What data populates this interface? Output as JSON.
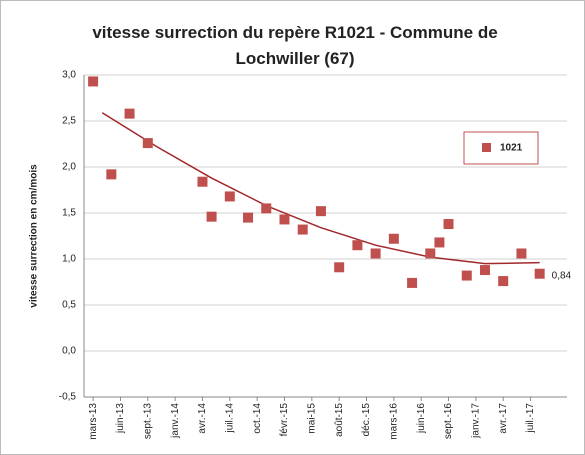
{
  "chart_data": {
    "type": "scatter",
    "title": "vitesse surrection du repère R1021 - Commune de Lochwiller (67)",
    "y_label": "vitesse surrection en cm/mois",
    "series": [
      {
        "name": "1021",
        "color": "#c0504d",
        "x": [
          "2013-03",
          "2013-05",
          "2013-07",
          "2013-09",
          "2014-03",
          "2014-04",
          "2014-06",
          "2014-08",
          "2014-10",
          "2014-12",
          "2015-02",
          "2015-04",
          "2015-06",
          "2015-08",
          "2015-10",
          "2015-12",
          "2016-02",
          "2016-04",
          "2016-05",
          "2016-06",
          "2016-08",
          "2016-10",
          "2016-12",
          "2017-02",
          "2017-04"
        ],
        "values": [
          2.93,
          1.92,
          2.58,
          2.26,
          1.84,
          1.46,
          1.68,
          1.45,
          1.55,
          1.43,
          1.32,
          1.52,
          0.91,
          1.15,
          1.06,
          1.22,
          0.74,
          1.06,
          1.18,
          1.38,
          0.82,
          0.88,
          0.76,
          1.06,
          0.84
        ],
        "value_labels": [
          null,
          null,
          null,
          null,
          null,
          null,
          null,
          null,
          null,
          null,
          null,
          null,
          null,
          null,
          null,
          null,
          null,
          null,
          null,
          null,
          null,
          null,
          null,
          null,
          "0,84"
        ]
      }
    ],
    "trendline": {
      "color": "#a0282a",
      "x": [
        "2013-04",
        "2013-10",
        "2014-04",
        "2014-10",
        "2015-04",
        "2015-10",
        "2016-04",
        "2016-10",
        "2017-04"
      ],
      "values": [
        2.59,
        2.22,
        1.88,
        1.58,
        1.34,
        1.15,
        1.02,
        0.95,
        0.96
      ]
    },
    "xlim": [
      "2013-02",
      "2017-07"
    ],
    "xticks": [
      {
        "value": "2013-03",
        "label": "mars-13"
      },
      {
        "value": "2013-06",
        "label": "juin-13"
      },
      {
        "value": "2013-09",
        "label": "sept.-13"
      },
      {
        "value": "2013-12",
        "label": "janv.-14"
      },
      {
        "value": "2014-03",
        "label": "avr.-14"
      },
      {
        "value": "2014-06",
        "label": "juil.-14"
      },
      {
        "value": "2014-09",
        "label": "oct.-14"
      },
      {
        "value": "2014-12",
        "label": "févr.-15"
      },
      {
        "value": "2015-03",
        "label": "mai-15"
      },
      {
        "value": "2015-06",
        "label": "août-15"
      },
      {
        "value": "2015-09",
        "label": "déc.-15"
      },
      {
        "value": "2015-12",
        "label": "mars-16"
      },
      {
        "value": "2016-03",
        "label": "juin-16"
      },
      {
        "value": "2016-06",
        "label": "sept.-16"
      },
      {
        "value": "2016-09",
        "label": "janv.-17"
      },
      {
        "value": "2016-12",
        "label": "avr.-17"
      },
      {
        "value": "2017-03",
        "label": "juil.-17"
      }
    ],
    "ylim": [
      -0.5,
      3.0
    ],
    "yticks": [
      {
        "value": -0.5,
        "label": "-0,5"
      },
      {
        "value": 0,
        "label": "0,0"
      },
      {
        "value": 0.5,
        "label": "0,5"
      },
      {
        "value": 1.0,
        "label": "1,0"
      },
      {
        "value": 1.5,
        "label": "1,5"
      },
      {
        "value": 2.0,
        "label": "2,0"
      },
      {
        "value": 2.5,
        "label": "2,5"
      },
      {
        "value": 3.0,
        "label": "3,0"
      }
    ],
    "grid": true,
    "legend": "right"
  }
}
